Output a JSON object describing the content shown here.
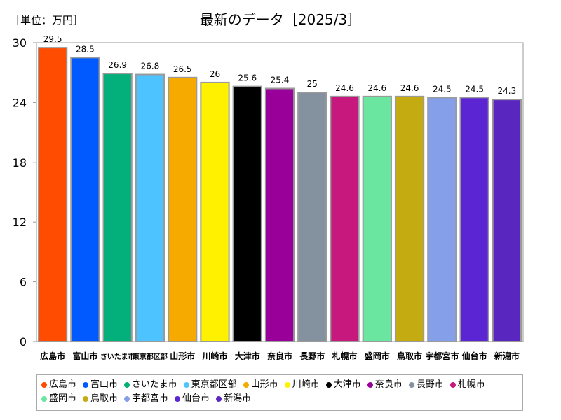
{
  "unit_label": "［単位：万円］",
  "chart_data": {
    "type": "bar",
    "title": "最新のデータ［2025/3］",
    "categories": [
      "広島市",
      "富山市",
      "さいたま市",
      "東京都区部",
      "山形市",
      "川崎市",
      "大津市",
      "奈良市",
      "長野市",
      "札幌市",
      "盛岡市",
      "鳥取市",
      "宇都宮市",
      "仙台市",
      "新潟市"
    ],
    "values": [
      29.5,
      28.5,
      26.9,
      26.8,
      26.5,
      26,
      25.6,
      25.4,
      25,
      24.6,
      24.6,
      24.6,
      24.5,
      24.5,
      24.3
    ],
    "value_labels": [
      "29.5",
      "28.5",
      "26.9",
      "26.8",
      "26.5",
      "26",
      "25.6",
      "25.4",
      "25",
      "24.6",
      "24.6",
      "24.6",
      "24.5",
      "24.5",
      "24.3"
    ],
    "colors": [
      "#ff4c00",
      "#005aff",
      "#03af7a",
      "#4dc4ff",
      "#f6aa00",
      "#fff100",
      "#000000",
      "#990099",
      "#84919e",
      "#c7187e",
      "#6ae6a0",
      "#c4ab11",
      "#859fe8",
      "#5c25d4",
      "#5a26c0"
    ],
    "ylim": [
      0,
      30
    ],
    "yticks": [
      "0",
      "6",
      "12",
      "18",
      "24",
      "30"
    ],
    "xlabel": "",
    "ylabel": "",
    "grid": false,
    "legend_position": "bottom"
  }
}
